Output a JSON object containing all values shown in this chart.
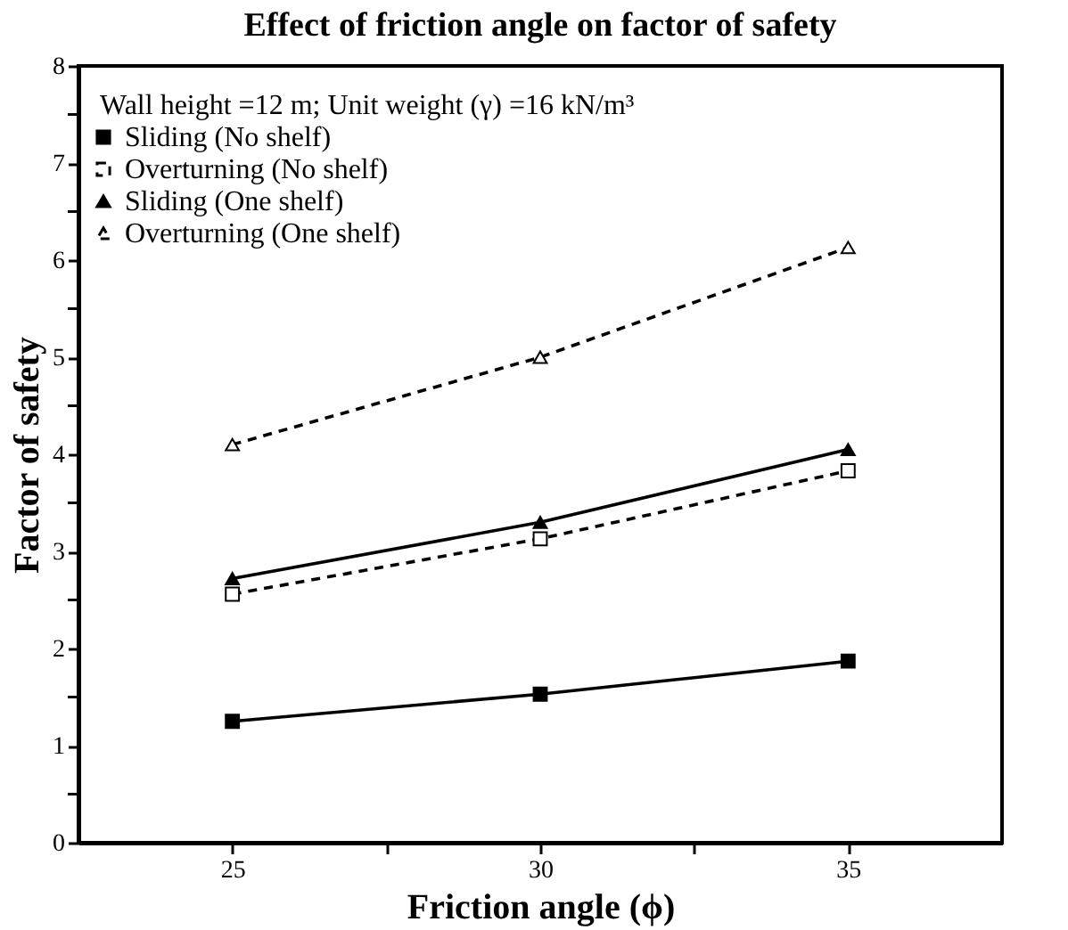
{
  "chart_data": {
    "type": "line",
    "title": "Effect of friction angle on factor of safety",
    "xlabel": "Friction angle (ϕ)",
    "ylabel": "Factor of safety",
    "annotations": [
      "Wall height =12 m; Unit weight (γ) =16 kN/m³"
    ],
    "x": [
      25,
      30,
      35
    ],
    "series": [
      {
        "name": "Sliding (No shelf)",
        "color": "#000000",
        "marker": "square",
        "line_style": "solid",
        "values": [
          1.25,
          1.53,
          1.87
        ]
      },
      {
        "name": "Overturning (No shelf)",
        "color": "#000000",
        "marker": "square",
        "line_style": "dashed",
        "values": [
          2.56,
          3.13,
          3.83
        ]
      },
      {
        "name": "Sliding (One shelf)",
        "color": "#000000",
        "marker": "triangle",
        "line_style": "solid",
        "values": [
          2.72,
          3.3,
          4.05
        ]
      },
      {
        "name": "Overturning (One shelf)",
        "color": "#000000",
        "marker": "triangle",
        "line_style": "dashed",
        "values": [
          4.1,
          5.0,
          6.13
        ]
      }
    ],
    "xlim": [
      22.5,
      37.5
    ],
    "xticks": [
      25,
      {
        "value": 27.5,
        "label": null
      },
      30,
      {
        "value": 32.5,
        "label": null
      },
      35
    ],
    "ylim": [
      0,
      8
    ],
    "yticks": [
      0,
      {
        "value": 0.5,
        "label": null
      },
      1,
      {
        "value": 1.5,
        "label": null
      },
      2,
      {
        "value": 2.5,
        "label": null
      },
      3,
      {
        "value": 3.5,
        "label": null
      },
      4,
      {
        "value": 4.5,
        "label": null
      },
      5,
      {
        "value": 5.5,
        "label": null
      },
      6,
      {
        "value": 6.5,
        "label": null
      },
      7,
      {
        "value": 7.5,
        "label": null
      },
      8
    ],
    "grid": false,
    "legend": "top left"
  }
}
